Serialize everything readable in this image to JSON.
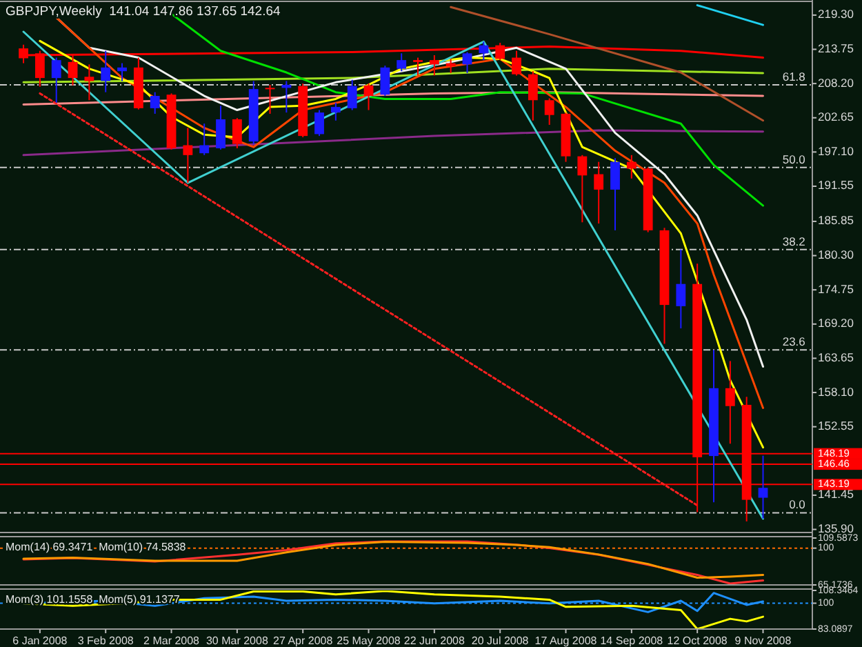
{
  "chart_data": [
    {
      "type": "candlestick",
      "title": "GBPJPY,Weekly  141.04 147.86 137.65 142.64",
      "xlim": [
        "2007-12-20",
        "2008-11-30"
      ],
      "ylim": [
        135.4,
        221.3
      ],
      "tick_labels": "y",
      "yticks": [
        {
          "value": 219.3,
          "label": "219.30"
        },
        213.75,
        {
          "value": 208.2,
          "label": "208.20"
        },
        202.65,
        {
          "value": 197.1,
          "label": "197.10"
        },
        191.55,
        185.85,
        {
          "value": 180.3,
          "label": "180.30"
        },
        174.75,
        {
          "value": 169.2,
          "label": "169.20"
        },
        163.65,
        {
          "value": 158.1,
          "label": "158.10"
        },
        152.55,
        141.45,
        {
          "value": 135.9,
          "label": "135.90"
        }
      ],
      "x": [
        "2007-12-30",
        "2008-01-06",
        "2008-01-13",
        "2008-01-20",
        "2008-01-27",
        "2008-02-03",
        "2008-02-10",
        "2008-02-17",
        "2008-02-24",
        "2008-03-02",
        "2008-03-09",
        "2008-03-16",
        "2008-03-23",
        "2008-03-30",
        "2008-04-06",
        "2008-04-13",
        "2008-04-20",
        "2008-04-27",
        "2008-05-04",
        "2008-05-11",
        "2008-05-18",
        "2008-05-25",
        "2008-06-01",
        "2008-06-08",
        "2008-06-15",
        "2008-06-22",
        "2008-06-29",
        "2008-07-06",
        "2008-07-13",
        "2008-07-20",
        "2008-07-27",
        "2008-08-03",
        "2008-08-10",
        "2008-08-17",
        "2008-08-24",
        "2008-08-31",
        "2008-09-07",
        "2008-09-14",
        "2008-09-21",
        "2008-09-28",
        "2008-10-05",
        "2008-10-12",
        "2008-10-19",
        "2008-10-26",
        "2008-11-02",
        "2008-11-09"
      ],
      "ohlc": [
        [
          213.9,
          214.5,
          211.5,
          212.3
        ],
        [
          213.1,
          213.5,
          207.7,
          209.1
        ],
        [
          209.1,
          212.4,
          205.1,
          212.0
        ],
        [
          211.7,
          213.0,
          207.9,
          209.1
        ],
        [
          209.3,
          211.3,
          205.5,
          208.6
        ],
        [
          208.6,
          213.5,
          206.8,
          210.8
        ],
        [
          210.2,
          211.5,
          208.6,
          210.8
        ],
        [
          210.8,
          212.4,
          204.0,
          204.2
        ],
        [
          204.2,
          206.8,
          203.3,
          206.2
        ],
        [
          206.4,
          206.6,
          197.5,
          197.7
        ],
        [
          198.2,
          201.0,
          192.1,
          196.6
        ],
        [
          196.9,
          201.7,
          196.6,
          198.2
        ],
        [
          197.7,
          204.6,
          197.5,
          202.4
        ],
        [
          202.4,
          202.6,
          197.7,
          198.4
        ],
        [
          198.8,
          208.6,
          198.4,
          207.3
        ],
        [
          207.5,
          208.0,
          203.3,
          207.3
        ],
        [
          207.5,
          208.6,
          203.5,
          208.0
        ],
        [
          207.8,
          208.2,
          199.5,
          199.7
        ],
        [
          200.0,
          203.9,
          199.7,
          203.5
        ],
        [
          203.5,
          205.1,
          202.2,
          204.4
        ],
        [
          204.2,
          208.8,
          203.9,
          207.8
        ],
        [
          207.9,
          208.2,
          203.9,
          206.2
        ],
        [
          206.4,
          211.1,
          206.2,
          210.8
        ],
        [
          210.6,
          213.1,
          210.2,
          212.0
        ],
        [
          212.0,
          212.4,
          209.5,
          211.7
        ],
        [
          212.0,
          212.8,
          209.5,
          211.3
        ],
        [
          211.5,
          212.2,
          209.9,
          211.0
        ],
        [
          211.3,
          213.3,
          209.9,
          213.1
        ],
        [
          213.1,
          215.0,
          212.0,
          214.4
        ],
        [
          214.4,
          214.8,
          212.0,
          212.2
        ],
        [
          212.4,
          213.5,
          209.5,
          209.7
        ],
        [
          209.7,
          210.2,
          202.2,
          205.5
        ],
        [
          205.5,
          205.8,
          201.5,
          203.1
        ],
        [
          203.3,
          203.5,
          195.5,
          196.4
        ],
        [
          196.4,
          196.6,
          185.7,
          193.3
        ],
        [
          193.5,
          195.5,
          185.5,
          191.0
        ],
        [
          191.0,
          196.1,
          184.4,
          195.5
        ],
        [
          195.5,
          196.6,
          192.8,
          194.4
        ],
        [
          194.4,
          194.6,
          184.1,
          184.4
        ],
        [
          184.4,
          184.8,
          166.0,
          172.3
        ],
        [
          172.1,
          181.3,
          168.5,
          175.7
        ],
        [
          175.7,
          179.0,
          138.7,
          147.6
        ],
        [
          147.8,
          165.0,
          140.3,
          158.8
        ],
        [
          158.8,
          163.2,
          149.8,
          155.9
        ],
        [
          156.1,
          157.4,
          137.2,
          140.7
        ],
        [
          141.04,
          147.86,
          137.65,
          142.64
        ]
      ],
      "colors": [
        "#ff0000",
        "#ff0000",
        "#1a1aff",
        "#ff0000",
        "#ff0000",
        "#1a1aff",
        "#1a1aff",
        "#ff0000",
        "#1a1aff",
        "#ff0000",
        "#ff0000",
        "#1a1aff",
        "#1a1aff",
        "#ff0000",
        "#1a1aff",
        "#ff0000",
        "#1a1aff",
        "#ff0000",
        "#1a1aff",
        "#1a1aff",
        "#1a1aff",
        "#ff0000",
        "#1a1aff",
        "#1a1aff",
        "#ff0000",
        "#ff0000",
        "#ff0000",
        "#1a1aff",
        "#1a1aff",
        "#ff0000",
        "#ff0000",
        "#ff0000",
        "#ff0000",
        "#ff0000",
        "#ff0000",
        "#ff0000",
        "#1a1aff",
        "#ff0000",
        "#ff0000",
        "#ff0000",
        "#1a1aff",
        "#ff0000",
        "#1a1aff",
        "#ff0000",
        "#ff0000",
        "#1a1aff"
      ],
      "series": [
        {
          "type": "line",
          "color": "#ff0000",
          "x": [
            "2007-12-30",
            "2008-05-18",
            "2008-08-10",
            "2008-10-05",
            "2008-11-09"
          ],
          "values": [
            212.8,
            213.3,
            214.2,
            213.5,
            212.4
          ]
        },
        {
          "type": "line",
          "color": "#a0e020",
          "x": [
            "2007-12-30",
            "2008-05-18",
            "2008-08-10",
            "2008-11-09"
          ],
          "values": [
            208.4,
            209.1,
            210.6,
            209.9
          ]
        },
        {
          "type": "line",
          "color": "#ff8c8c",
          "x": [
            "2007-12-30",
            "2008-06-22",
            "2008-08-10",
            "2008-11-09"
          ],
          "values": [
            204.8,
            206.6,
            206.8,
            206.2
          ]
        },
        {
          "type": "line",
          "color": "#8a2a8a",
          "x": [
            "2007-12-30",
            "2008-06-22",
            "2008-08-31",
            "2008-11-09"
          ],
          "values": [
            196.6,
            199.7,
            200.6,
            200.4
          ]
        },
        {
          "type": "line",
          "color": "#b0502a",
          "x": [
            "2008-06-29",
            "2008-08-10",
            "2008-10-05",
            "2008-11-09"
          ],
          "values": [
            220.6,
            216.2,
            210.0,
            202.2
          ]
        },
        {
          "type": "line",
          "color": "#20d0f0",
          "x": [
            "2008-10-12",
            "2008-11-09"
          ],
          "values": [
            220.9,
            217.7
          ]
        },
        {
          "type": "line",
          "color": "#00e000",
          "x": [
            "2008-03-02",
            "2008-03-23",
            "2008-04-20",
            "2008-05-11",
            "2008-06-01",
            "2008-06-29",
            "2008-07-20",
            "2008-08-24",
            "2008-10-05",
            "2008-10-19",
            "2008-11-09"
          ],
          "values": [
            219.5,
            213.5,
            210.0,
            206.8,
            205.7,
            205.7,
            206.8,
            206.6,
            201.7,
            195.0,
            188.4
          ]
        },
        {
          "type": "line",
          "color": "#f0f0f0",
          "x": [
            "2008-01-13",
            "2008-01-27",
            "2008-02-17",
            "2008-03-16",
            "2008-03-30",
            "2008-05-11",
            "2008-06-08",
            "2008-06-29",
            "2008-07-27",
            "2008-08-17",
            "2008-09-07",
            "2008-09-28",
            "2008-10-12",
            "2008-11-02",
            "2008-11-09"
          ],
          "values": [
            218.9,
            214.0,
            212.4,
            206.2,
            203.9,
            208.4,
            210.2,
            211.7,
            214.0,
            210.6,
            200.2,
            193.5,
            186.8,
            169.9,
            162.3
          ]
        },
        {
          "type": "line",
          "color": "#ff4500",
          "x": [
            "2008-01-13",
            "2008-02-10",
            "2008-03-16",
            "2008-04-06",
            "2008-04-27",
            "2008-06-01",
            "2008-06-22",
            "2008-07-20",
            "2008-08-17",
            "2008-09-07",
            "2008-09-28",
            "2008-10-12",
            "2008-10-19",
            "2008-11-09"
          ],
          "values": [
            218.9,
            209.1,
            201.0,
            197.9,
            203.9,
            206.8,
            210.6,
            212.2,
            204.4,
            197.3,
            192.1,
            185.5,
            177.2,
            155.6
          ]
        },
        {
          "type": "line",
          "color": "#ffff00",
          "x": [
            "2008-01-06",
            "2008-01-27",
            "2008-02-17",
            "2008-03-02",
            "2008-03-16",
            "2008-03-30",
            "2008-04-13",
            "2008-04-27",
            "2008-05-11",
            "2008-05-25",
            "2008-06-08",
            "2008-06-22",
            "2008-07-06",
            "2008-07-20",
            "2008-08-03",
            "2008-08-10",
            "2008-08-24",
            "2008-09-14",
            "2008-10-05",
            "2008-10-19",
            "2008-10-26",
            "2008-11-09"
          ],
          "values": [
            215.1,
            210.6,
            208.0,
            202.8,
            199.9,
            199.5,
            204.4,
            204.6,
            205.7,
            208.0,
            210.6,
            211.7,
            212.4,
            212.2,
            210.2,
            209.1,
            197.9,
            194.4,
            183.9,
            168.3,
            160.1,
            149.2
          ]
        },
        {
          "type": "line",
          "color": "#40d0d0",
          "x": [
            "2007-12-30",
            "2008-03-09",
            "2008-07-13",
            "2008-11-09"
          ],
          "values": [
            216.6,
            192.1,
            215.0,
            137.65
          ]
        },
        {
          "type": "line",
          "color": "#ff2020",
          "line_style": "dotted",
          "x": [
            "2008-01-06",
            "2008-10-12"
          ],
          "values": [
            206.6,
            139.8
          ]
        }
      ],
      "ref_lines": [
        {
          "axis": "y",
          "value": 208.0,
          "color": "#c8c8c8",
          "line_style": "dashed"
        },
        {
          "axis": "y",
          "value": 194.6,
          "color": "#c8c8c8",
          "line_style": "dashed"
        },
        {
          "axis": "y",
          "value": 181.3,
          "color": "#c8c8c8",
          "line_style": "dashed"
        },
        {
          "axis": "y",
          "value": 165.0,
          "color": "#c8c8c8",
          "line_style": "dashed"
        },
        {
          "axis": "y",
          "value": 138.6,
          "color": "#c8c8c8",
          "line_style": "dashed"
        },
        {
          "axis": "y",
          "value": 148.19,
          "label": "148.19",
          "color": "#ff0000",
          "line_style": "solid"
        },
        {
          "axis": "y",
          "value": 146.46,
          "label": "146.46",
          "color": "#ff0000",
          "line_style": "solid"
        },
        {
          "axis": "y",
          "value": 143.19,
          "label": "143.19",
          "color": "#ff0000",
          "line_style": "solid"
        }
      ],
      "annotations": [
        {
          "text": "61.8",
          "x": "2008-11-27",
          "y": 208.0
        },
        {
          "text": "50.0",
          "x": "2008-11-27",
          "y": 194.6
        },
        {
          "text": "38.2",
          "x": "2008-11-27",
          "y": 181.3
        },
        {
          "text": "23.6",
          "x": "2008-11-27",
          "y": 165.0
        },
        {
          "text": "0.0",
          "x": "2008-11-27",
          "y": 138.6
        }
      ]
    },
    {
      "type": "line",
      "title": "Mom(14) 69.3471  Mom(10) 74.5838",
      "xlim": [
        "2007-12-20",
        "2008-11-30"
      ],
      "ylim": [
        65.1736,
        109.5873
      ],
      "tick_labels": "y",
      "yticks": [
        109.5873,
        100,
        65.1736
      ],
      "series": [
        {
          "color": "#ff3030",
          "x": [
            "2007-12-30",
            "2008-01-20",
            "2008-02-24",
            "2008-03-30",
            "2008-04-20",
            "2008-05-11",
            "2008-06-01",
            "2008-07-06",
            "2008-07-27",
            "2008-08-10",
            "2008-08-31",
            "2008-09-21",
            "2008-10-12",
            "2008-10-26",
            "2008-11-09"
          ],
          "values": [
            89.3,
            90.6,
            87.4,
            93.7,
            98.2,
            104.5,
            106.4,
            106.4,
            103.2,
            100.1,
            93.7,
            84.2,
            74.7,
            66.5,
            69.3471
          ]
        },
        {
          "color": "#ff9900",
          "x": [
            "2007-12-30",
            "2008-01-20",
            "2008-02-24",
            "2008-03-30",
            "2008-04-20",
            "2008-05-11",
            "2008-06-01",
            "2008-07-06",
            "2008-07-27",
            "2008-08-10",
            "2008-08-31",
            "2008-09-21",
            "2008-10-12",
            "2008-10-26",
            "2008-11-09"
          ],
          "values": [
            90.0,
            91.0,
            88.0,
            88.0,
            96.0,
            103.0,
            106.0,
            105.0,
            103.0,
            101.0,
            94.0,
            85.0,
            72.0,
            73.0,
            74.5838
          ]
        }
      ],
      "ref_lines": [
        {
          "axis": "y",
          "value": 100,
          "color": "#ff6a00",
          "line_style": "dotted"
        }
      ]
    },
    {
      "type": "line",
      "title": "Mom(3) 101.1558  Mom(5) 91.1377",
      "xlim": [
        "2007-12-20",
        "2008-11-30"
      ],
      "ylim": [
        83.0897,
        108.3464
      ],
      "yticks": [
        108.3464,
        100,
        83.0897
      ],
      "xticks": [
        {
          "value": "2008-01-06",
          "label": "6 Jan 2008"
        },
        {
          "value": "2008-02-03",
          "label": "3 Feb 2008"
        },
        {
          "value": "2008-03-02",
          "label": "2 Mar 2008"
        },
        {
          "value": "2008-03-30",
          "label": "30 Mar 2008"
        },
        {
          "value": "2008-04-27",
          "label": "27 Apr 2008"
        },
        {
          "value": "2008-05-25",
          "label": "25 May 2008"
        },
        {
          "value": "2008-06-22",
          "label": "22 Jun 2008"
        },
        {
          "value": "2008-07-20",
          "label": "20 Jul 2008"
        },
        {
          "value": "2008-08-17",
          "label": "17 Aug 2008"
        },
        {
          "value": "2008-09-14",
          "label": "14 Sep 2008"
        },
        {
          "value": "2008-10-12",
          "label": "12 Oct 2008"
        },
        {
          "value": "2008-11-09",
          "label": "9 Nov 2008"
        }
      ],
      "series": [
        {
          "color": "#1e90ff",
          "x": [
            "2007-12-30",
            "2008-02-03",
            "2008-02-24",
            "2008-03-16",
            "2008-04-06",
            "2008-04-20",
            "2008-05-11",
            "2008-06-01",
            "2008-06-22",
            "2008-07-20",
            "2008-08-10",
            "2008-08-31",
            "2008-09-21",
            "2008-10-05",
            "2008-10-12",
            "2008-10-19",
            "2008-11-02",
            "2008-11-09"
          ],
          "values": [
            99.9,
            101.6,
            98.3,
            103.3,
            104.3,
            101.6,
            102.3,
            101.6,
            99.9,
            101.6,
            99.9,
            101.6,
            94.2,
            101.6,
            94.9,
            106.7,
            98.9,
            101.1558
          ]
        },
        {
          "color": "#ffff00",
          "x": [
            "2007-12-30",
            "2008-01-20",
            "2008-02-10",
            "2008-03-02",
            "2008-03-23",
            "2008-04-06",
            "2008-04-27",
            "2008-05-11",
            "2008-06-01",
            "2008-06-22",
            "2008-07-20",
            "2008-08-10",
            "2008-08-17",
            "2008-09-14",
            "2008-10-05",
            "2008-10-12",
            "2008-10-26",
            "2008-11-02",
            "2008-11-09"
          ],
          "values": [
            99.9,
            98.3,
            99.9,
            102.3,
            102.3,
            107.7,
            107.7,
            105.7,
            108.0,
            105.7,
            104.3,
            102.3,
            97.6,
            98.3,
            95.5,
            83.1,
            89.8,
            88.1,
            91.1377
          ]
        }
      ],
      "ref_lines": [
        {
          "axis": "y",
          "value": 100,
          "color": "#1e90ff",
          "line_style": "dotted"
        }
      ]
    }
  ]
}
